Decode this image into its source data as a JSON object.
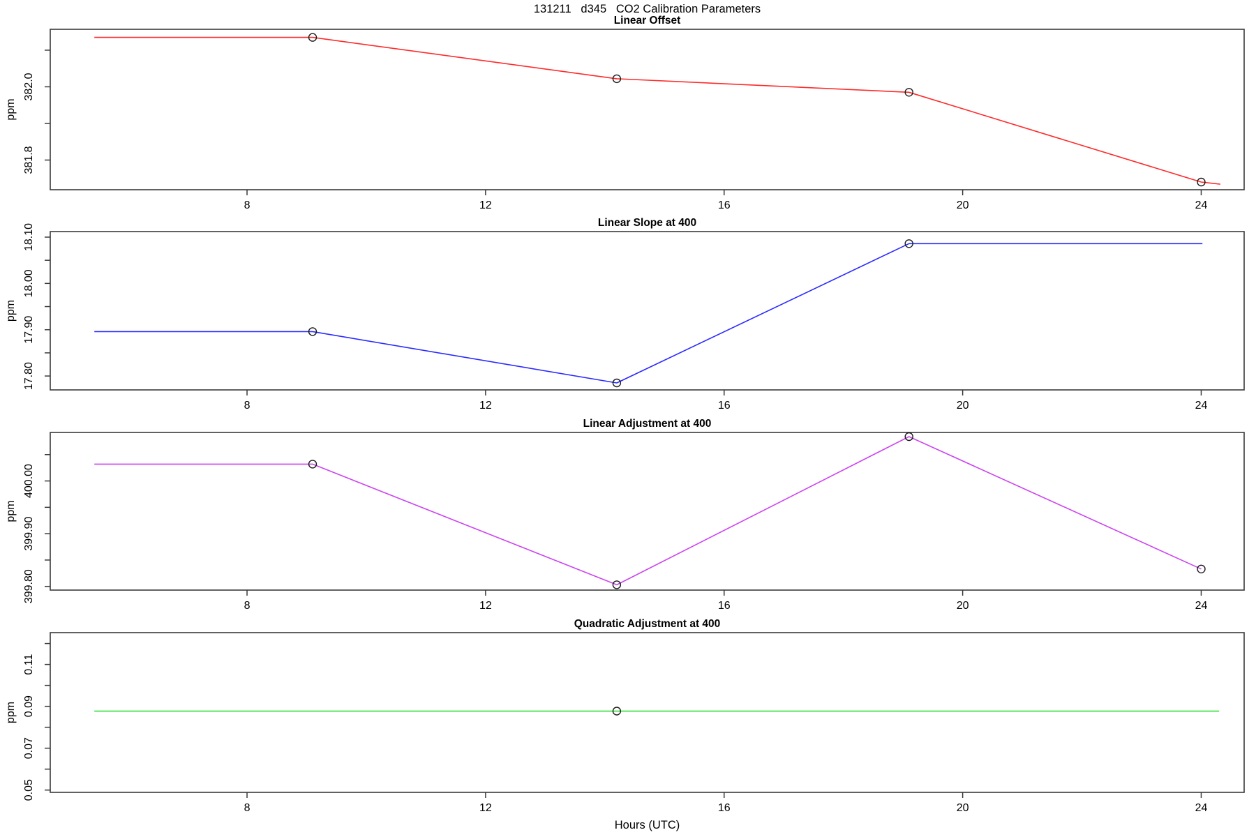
{
  "page": {
    "background": "#ffffff"
  },
  "main_title": "131211   d345   CO2 Calibration Parameters",
  "x_axis_label": "Hours (UTC)",
  "axis_color": "#3a3a3a",
  "marker_color": "#1a1a1a",
  "chart_data": {
    "type": "line",
    "title": "131211   d345   CO2 Calibration Parameters",
    "xlabel": "Hours (UTC)",
    "xlim": [
      4.7,
      24.72
    ],
    "xticks": [
      8,
      12,
      16,
      20,
      24
    ],
    "grid": false,
    "legend": "none",
    "panels": [
      {
        "title": "Linear Offset",
        "ylabel": "ppm",
        "color": "#ff2a2a",
        "ylim": [
          381.719,
          382.157
        ],
        "yticks": [
          {
            "v": 381.8,
            "label": "381.8"
          },
          {
            "v": 381.9,
            "label": ""
          },
          {
            "v": 382.0,
            "label": "382.0"
          },
          {
            "v": 382.1,
            "label": ""
          }
        ],
        "line": [
          [
            5.44,
            382.135
          ],
          [
            9.1,
            382.135
          ],
          [
            14.2,
            382.022
          ],
          [
            19.1,
            381.985
          ],
          [
            24.0,
            381.74
          ],
          [
            24.32,
            381.734
          ]
        ],
        "markers": [
          [
            9.1,
            382.135
          ],
          [
            14.2,
            382.022
          ],
          [
            19.1,
            381.985
          ],
          [
            24.0,
            381.74
          ]
        ]
      },
      {
        "title": "Linear Slope at 400",
        "ylabel": "ppm",
        "color": "#2a2aff",
        "ylim": [
          17.77,
          18.112
        ],
        "yticks": [
          {
            "v": 17.8,
            "label": "17.80"
          },
          {
            "v": 17.85,
            "label": ""
          },
          {
            "v": 17.9,
            "label": "17.90"
          },
          {
            "v": 17.95,
            "label": ""
          },
          {
            "v": 18.0,
            "label": "18.00"
          },
          {
            "v": 18.05,
            "label": ""
          },
          {
            "v": 18.1,
            "label": "18.10"
          }
        ],
        "line": [
          [
            5.44,
            17.896
          ],
          [
            9.1,
            17.896
          ],
          [
            14.2,
            17.785
          ],
          [
            19.1,
            18.086
          ],
          [
            24.02,
            18.086
          ]
        ],
        "markers": [
          [
            9.1,
            17.896
          ],
          [
            14.2,
            17.785
          ],
          [
            19.1,
            18.086
          ]
        ]
      },
      {
        "title": "Linear Adjustment at 400",
        "ylabel": "ppm",
        "color": "#cc44f0",
        "ylim": [
          399.793,
          400.092
        ],
        "yticks": [
          {
            "v": 399.8,
            "label": "399.80"
          },
          {
            "v": 399.85,
            "label": ""
          },
          {
            "v": 399.9,
            "label": "399.90"
          },
          {
            "v": 399.95,
            "label": ""
          },
          {
            "v": 400.0,
            "label": "400.00"
          },
          {
            "v": 400.05,
            "label": ""
          }
        ],
        "line": [
          [
            5.44,
            400.032
          ],
          [
            9.1,
            400.032
          ],
          [
            14.2,
            399.803
          ],
          [
            19.1,
            400.084
          ],
          [
            24.0,
            399.833
          ]
        ],
        "markers": [
          [
            9.1,
            400.032
          ],
          [
            14.2,
            399.803
          ],
          [
            19.1,
            400.084
          ],
          [
            24.0,
            399.833
          ]
        ]
      },
      {
        "title": "Quadratic Adjustment at 400",
        "ylabel": "ppm",
        "color": "#22dd22",
        "ylim": [
          0.0489,
          0.1252
        ],
        "yticks": [
          {
            "v": 0.05,
            "label": "0.05"
          },
          {
            "v": 0.06,
            "label": ""
          },
          {
            "v": 0.07,
            "label": "0.07"
          },
          {
            "v": 0.08,
            "label": ""
          },
          {
            "v": 0.09,
            "label": "0.09"
          },
          {
            "v": 0.1,
            "label": ""
          },
          {
            "v": 0.11,
            "label": "0.11"
          },
          {
            "v": 0.12,
            "label": ""
          }
        ],
        "line": [
          [
            5.44,
            0.0877
          ],
          [
            24.3,
            0.0877
          ]
        ],
        "markers": [
          [
            14.2,
            0.0877
          ]
        ]
      }
    ]
  }
}
